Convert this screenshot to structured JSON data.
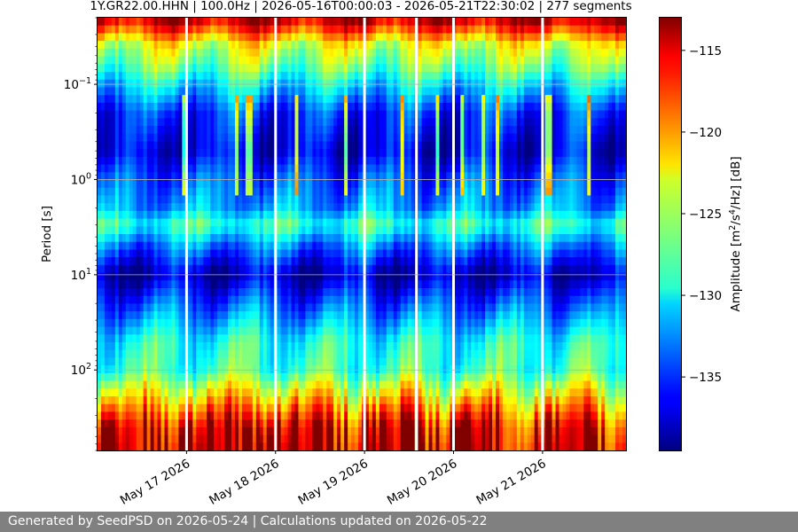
{
  "chart_data": {
    "type": "heatmap",
    "title": "1Y.GR22.00.HHN | 100.0Hz | 2026-05-16T00:00:03 - 2026-05-21T22:30:02 | 277 segments",
    "ylabel": "Period [s]",
    "colorbar_label_main": "Amplitude [m",
    "colorbar_label_exp1": "2",
    "colorbar_label_mid": "/s",
    "colorbar_label_exp2": "4",
    "colorbar_label_end": "/Hz] [dB]",
    "y_scale": "log",
    "y_inverted": true,
    "ylim": [
      0.02,
      700
    ],
    "grid_y": true,
    "colormap": "jet",
    "colorbar_range": [
      -139.5,
      -113
    ],
    "colorbar_ticks": [
      {
        "value": -115,
        "label": "−115"
      },
      {
        "value": -120,
        "label": "−120"
      },
      {
        "value": -125,
        "label": "−125"
      },
      {
        "value": -130,
        "label": "−130"
      },
      {
        "value": -135,
        "label": "−135"
      }
    ],
    "y_ticks": [
      {
        "value": 0.1,
        "base": "10",
        "exp": "−1"
      },
      {
        "value": 1,
        "base": "10",
        "exp": "0"
      },
      {
        "value": 10,
        "base": "10",
        "exp": "1"
      },
      {
        "value": 100,
        "base": "10",
        "exp": "2"
      }
    ],
    "x_range": [
      "2026-05-16T00:00:03",
      "2026-05-21T22:30:02"
    ],
    "x_ticks": [
      {
        "value": "2026-05-17",
        "label": "May 17 2026"
      },
      {
        "value": "2026-05-18",
        "label": "May 18 2026"
      },
      {
        "value": "2026-05-19",
        "label": "May 19 2026"
      },
      {
        "value": "2026-05-20",
        "label": "May 20 2026"
      },
      {
        "value": "2026-05-21",
        "label": "May 21 2026"
      }
    ],
    "data_gaps": [
      "2026-05-17T00:00",
      "2026-05-18T00:00",
      "2026-05-19T00:00",
      "2026-05-19T14:00",
      "2026-05-20T00:00",
      "2026-05-21T00:00"
    ],
    "amplitude_profile_db": [
      {
        "period": 0.02,
        "db": -114
      },
      {
        "period": 0.025,
        "db": -117
      },
      {
        "period": 0.04,
        "db": -124
      },
      {
        "period": 0.06,
        "db": -126
      },
      {
        "period": 0.1,
        "db": -130
      },
      {
        "period": 0.2,
        "db": -135
      },
      {
        "period": 0.5,
        "db": -137
      },
      {
        "period": 1,
        "db": -134
      },
      {
        "period": 2,
        "db": -132
      },
      {
        "period": 3,
        "db": -128
      },
      {
        "period": 5,
        "db": -133
      },
      {
        "period": 10,
        "db": -138
      },
      {
        "period": 20,
        "db": -134
      },
      {
        "period": 50,
        "db": -129
      },
      {
        "period": 100,
        "db": -128
      },
      {
        "period": 200,
        "db": -122
      },
      {
        "period": 400,
        "db": -116
      },
      {
        "period": 700,
        "db": -114
      }
    ]
  },
  "footer": {
    "text": "Generated by SeedPSD on 2026-05-24 | Calculations updated on 2026-05-22"
  }
}
